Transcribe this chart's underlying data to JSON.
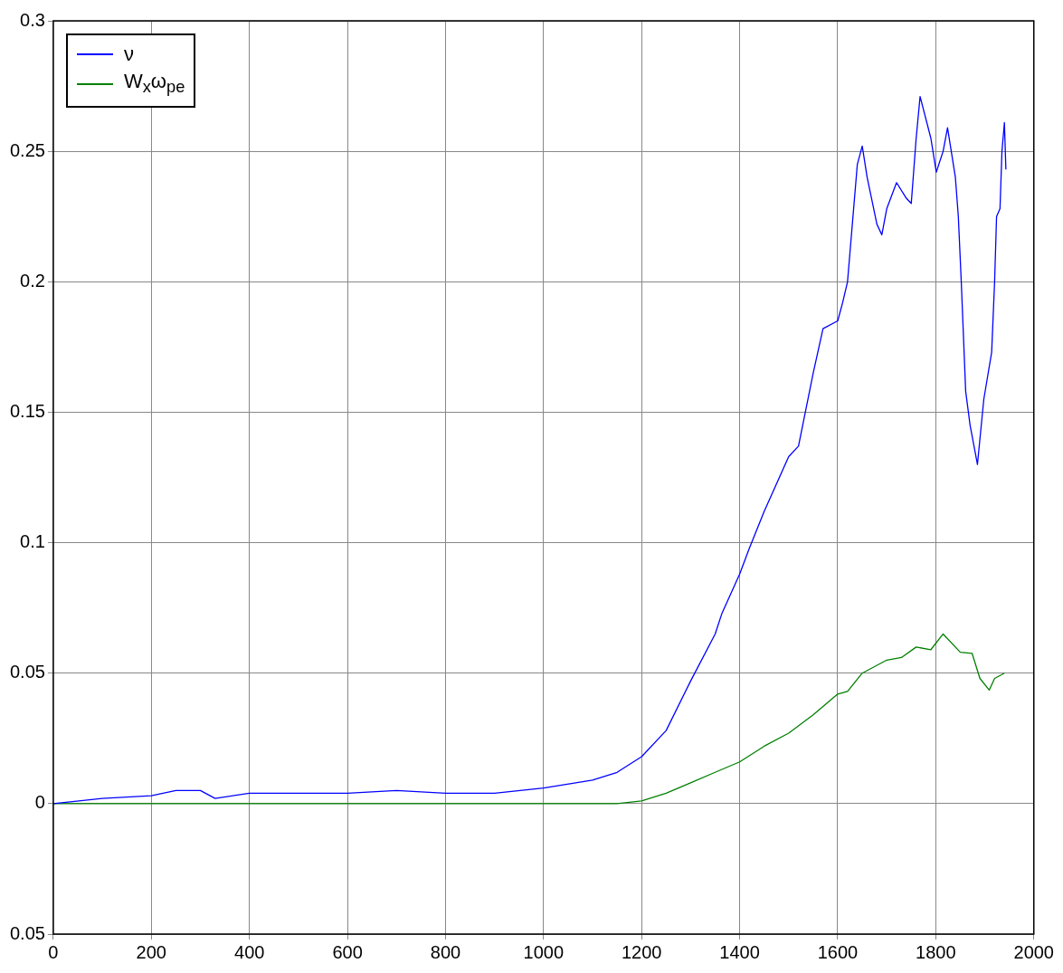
{
  "chart_data": {
    "type": "line",
    "xlim": [
      0,
      2000
    ],
    "xticks": [
      0,
      200,
      400,
      600,
      800,
      1000,
      1200,
      1400,
      1600,
      1800,
      2000
    ],
    "ylim": [
      -0.05,
      0.3
    ],
    "yticks": [
      {
        "value": -0.05,
        "label": "0.05"
      },
      0,
      0.05,
      0.1,
      0.15,
      0.2,
      0.25,
      0.3
    ],
    "grid": true,
    "legend": "top left",
    "marker": "none",
    "line_style": "solid",
    "series": [
      {
        "name": "ν",
        "color": "#0000ff",
        "x": [
          0,
          100,
          200,
          250,
          300,
          330,
          400,
          500,
          600,
          700,
          800,
          900,
          1000,
          1100,
          1150,
          1200,
          1250,
          1300,
          1350,
          1364,
          1400,
          1419,
          1450,
          1500,
          1520,
          1550,
          1570,
          1600,
          1610,
          1620,
          1640,
          1650,
          1660,
          1680,
          1690,
          1700,
          1720,
          1740,
          1750,
          1760,
          1768,
          1790,
          1801,
          1815,
          1824,
          1840,
          1846,
          1852,
          1861,
          1870,
          1885,
          1898,
          1914,
          1920,
          1924,
          1931,
          1935,
          1940,
          1943
        ],
        "values": [
          0,
          0.002,
          0.003,
          0.005,
          0.005,
          0.002,
          0.004,
          0.004,
          0.004,
          0.005,
          0.004,
          0.004,
          0.006,
          0.009,
          0.012,
          0.018,
          0.028,
          0.047,
          0.065,
          0.073,
          0.088,
          0.0975,
          0.112,
          0.133,
          0.137,
          0.165,
          0.182,
          0.185,
          0.192,
          0.2,
          0.245,
          0.252,
          0.24,
          0.222,
          0.218,
          0.228,
          0.238,
          0.232,
          0.23,
          0.255,
          0.271,
          0.255,
          0.242,
          0.25,
          0.259,
          0.24,
          0.225,
          0.2,
          0.158,
          0.145,
          0.13,
          0.155,
          0.173,
          0.2,
          0.225,
          0.228,
          0.25,
          0.261,
          0.243
        ]
      },
      {
        "name": "W$_{x}$ω$_{pe}$",
        "color": "#008000",
        "x": [
          0,
          200,
          400,
          600,
          800,
          1000,
          1150,
          1200,
          1250,
          1300,
          1350,
          1400,
          1450,
          1500,
          1550,
          1600,
          1620,
          1650,
          1700,
          1730,
          1760,
          1790,
          1815,
          1850,
          1874,
          1890,
          1909,
          1920,
          1940
        ],
        "values": [
          0,
          0,
          0,
          0,
          0,
          0,
          0,
          0.001,
          0.004,
          0.008,
          0.012,
          0.016,
          0.022,
          0.027,
          0.034,
          0.042,
          0.043,
          0.05,
          0.055,
          0.056,
          0.06,
          0.059,
          0.065,
          0.058,
          0.0576,
          0.048,
          0.0435,
          0.048,
          0.05
        ]
      }
    ]
  }
}
